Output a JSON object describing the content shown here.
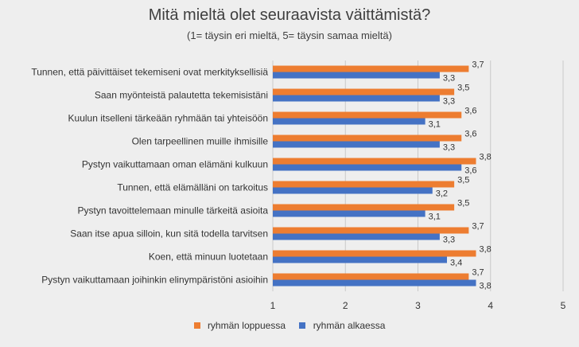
{
  "chart_data": {
    "type": "bar",
    "orientation": "horizontal",
    "title": "Mitä mieltä olet seuraavista väittämistä?",
    "subtitle": "(1= täysin eri mieltä, 5= täysin samaa mieltä)",
    "categories": [
      "Tunnen, että päivittäiset tekemiseni ovat merkityksellisiä",
      "Saan myönteistä palautetta tekemisistäni",
      "Kuulun itselleni tärkeään ryhmään tai yhteisöön",
      "Olen tarpeellinen muille ihmisille",
      "Pystyn vaikuttamaan oman elämäni kulkuun",
      "Tunnen, että elämälläni on tarkoitus",
      "Pystyn tavoittelemaan minulle tärkeitä asioita",
      "Saan itse apua silloin, kun sitä todella tarvitsen",
      "Koen, että minuun luotetaan",
      "Pystyn vaikuttamaan joihinkin elinympäristöni asioihin"
    ],
    "series": [
      {
        "name": "ryhmän loppuessa",
        "color": "#ed7d31",
        "values": [
          3.7,
          3.5,
          3.6,
          3.6,
          3.8,
          3.5,
          3.5,
          3.7,
          3.8,
          3.7
        ],
        "labels": [
          "3,7",
          "3,5",
          "3,6",
          "3,6",
          "3,8",
          "3,5",
          "3,5",
          "3,7",
          "3,8",
          "3,7"
        ]
      },
      {
        "name": "ryhmän alkaessa",
        "color": "#4472c4",
        "values": [
          3.3,
          3.3,
          3.1,
          3.3,
          3.6,
          3.2,
          3.1,
          3.3,
          3.4,
          3.8
        ],
        "labels": [
          "3,3",
          "3,3",
          "3,1",
          "3,3",
          "3,6",
          "3,2",
          "3,1",
          "3,3",
          "3,4",
          "3,8"
        ]
      }
    ],
    "xlim": [
      1,
      5
    ],
    "xticks": [
      "1",
      "2",
      "3",
      "4",
      "5"
    ],
    "grid": true,
    "legend_position": "bottom"
  }
}
